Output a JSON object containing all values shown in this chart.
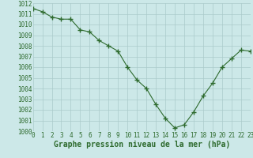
{
  "x": [
    0,
    1,
    2,
    3,
    4,
    5,
    6,
    7,
    8,
    9,
    10,
    11,
    12,
    13,
    14,
    15,
    16,
    17,
    18,
    19,
    20,
    21,
    22,
    23
  ],
  "y": [
    1011.5,
    1011.2,
    1010.7,
    1010.5,
    1010.5,
    1009.5,
    1009.3,
    1008.5,
    1008.0,
    1007.5,
    1006.0,
    1004.8,
    1004.0,
    1002.5,
    1001.2,
    1000.3,
    1000.6,
    1001.8,
    1003.3,
    1004.5,
    1006.0,
    1006.8,
    1007.6,
    1007.5
  ],
  "ylim": [
    1000,
    1012
  ],
  "xlim": [
    0,
    23
  ],
  "yticks": [
    1000,
    1001,
    1002,
    1003,
    1004,
    1005,
    1006,
    1007,
    1008,
    1009,
    1010,
    1011,
    1012
  ],
  "xticks": [
    0,
    1,
    2,
    3,
    4,
    5,
    6,
    7,
    8,
    9,
    10,
    11,
    12,
    13,
    14,
    15,
    16,
    17,
    18,
    19,
    20,
    21,
    22,
    23
  ],
  "xlabel": "Graphe pression niveau de la mer (hPa)",
  "line_color": "#2d6a2d",
  "marker": "+",
  "marker_size": 4,
  "bg_color": "#cce8e8",
  "grid_color": "#aacaca",
  "tick_color": "#2d6a2d",
  "label_fontsize": 5.5,
  "xlabel_fontsize": 7.0
}
